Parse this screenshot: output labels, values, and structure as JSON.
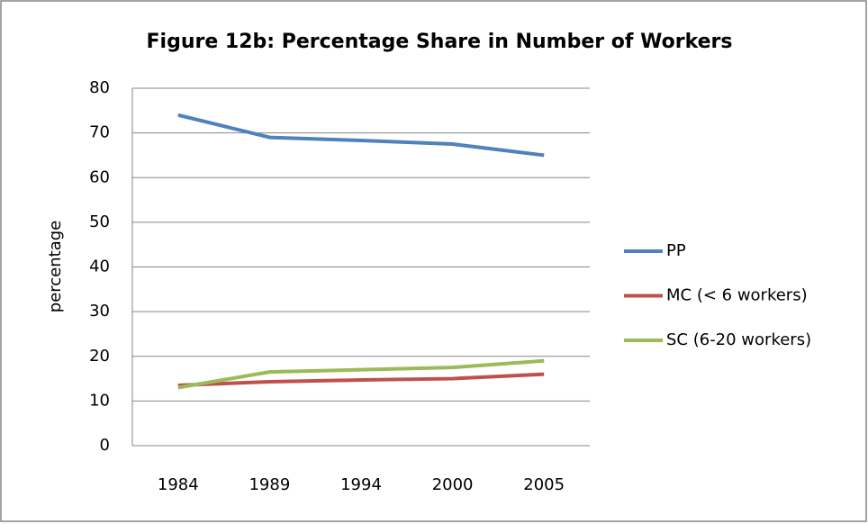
{
  "chart_data": {
    "type": "line",
    "title": "Figure 12b: Percentage Share in Number of Workers",
    "y_label": "percentage",
    "categories": [
      "1984",
      "1989",
      "1994",
      "2000",
      "2005"
    ],
    "series": [
      {
        "name": "PP",
        "color": "#4f81bd",
        "values": [
          74,
          69,
          68.3,
          67.5,
          65
        ]
      },
      {
        "name": "MC (< 6 workers)",
        "color": "#c0504d",
        "values": [
          13.5,
          14.3,
          14.7,
          15,
          16
        ]
      },
      {
        "name": "SC (6-20 workers)",
        "color": "#9bbb59",
        "values": [
          13,
          16.5,
          17,
          17.5,
          19
        ]
      }
    ],
    "ylim": [
      0,
      80
    ],
    "yticks": [
      0,
      10,
      20,
      30,
      40,
      50,
      60,
      70,
      80
    ],
    "grid": true,
    "legend": "right"
  }
}
